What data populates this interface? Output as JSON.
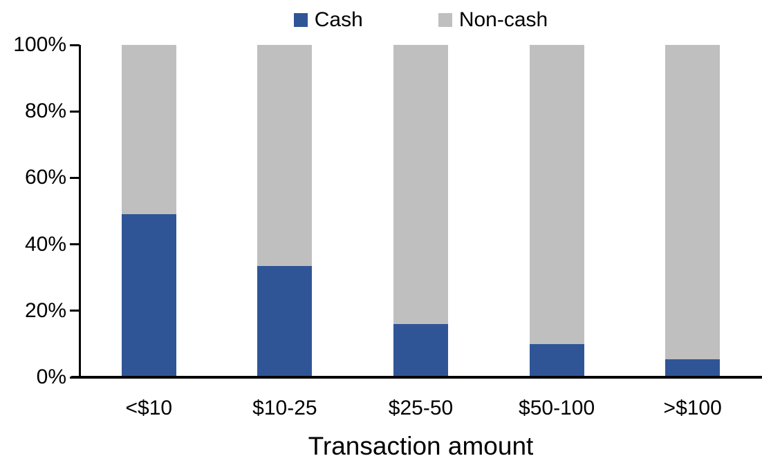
{
  "chart_data": {
    "type": "bar",
    "stacked": true,
    "units": "percent",
    "categories": [
      "<$10",
      "$10-25",
      "$25-50",
      "$50-100",
      ">$100"
    ],
    "series": [
      {
        "name": "Cash",
        "color": "#2F5597",
        "values": [
          49,
          33.5,
          16,
          10,
          5.5
        ]
      },
      {
        "name": "Non-cash",
        "color": "#BFBFBF",
        "values": [
          51,
          66.5,
          84,
          90,
          94.5
        ]
      }
    ],
    "title": "",
    "xlabel": "Transaction amount",
    "ylabel": "",
    "ylim": [
      0,
      100
    ],
    "yticks": [
      "0%",
      "20%",
      "40%",
      "60%",
      "80%",
      "100%"
    ],
    "grid": false,
    "legend_position": "top-center",
    "background_color": "#FFFFFF",
    "axis_color": "#000000"
  }
}
